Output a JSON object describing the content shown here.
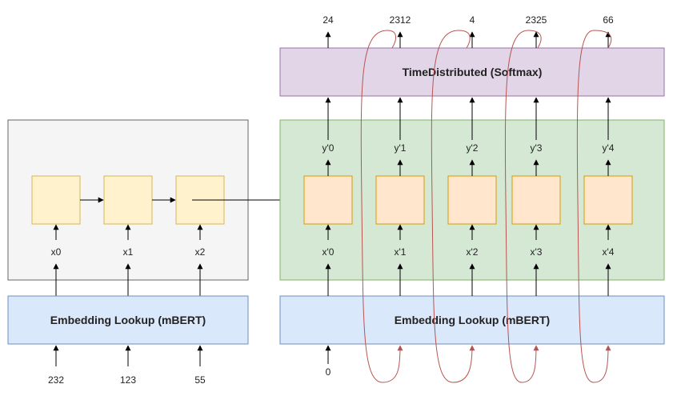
{
  "encoder": {
    "embedding_label": "Embedding Lookup (mBERT)",
    "inputs": [
      "232",
      "123",
      "55"
    ],
    "states": [
      "x0",
      "x1",
      "x2"
    ]
  },
  "decoder": {
    "embedding_label": "Embedding Lookup (mBERT)",
    "start_input": "0",
    "states": [
      "x'0",
      "x'1",
      "x'2",
      "x'3",
      "x'4"
    ],
    "hidden_outputs": [
      "y'0",
      "y'1",
      "y'2",
      "y'3",
      "y'4"
    ],
    "softmax_label": "TimeDistributed (Softmax)",
    "outputs": [
      "24",
      "2312",
      "4",
      "2325",
      "66"
    ]
  },
  "colors": {
    "encoder_panel_fill": "#f5f5f5",
    "encoder_panel_stroke": "#666666",
    "encoder_cell_fill": "#fff2cc",
    "encoder_cell_stroke": "#d6b656",
    "decoder_panel_fill": "#d5e8d4",
    "decoder_panel_stroke": "#82b366",
    "decoder_cell_fill": "#ffe6cc",
    "decoder_cell_stroke": "#d79b00",
    "embedding_fill": "#dae8fc",
    "embedding_stroke": "#6c8ebf",
    "softmax_fill": "#e1d5e7",
    "softmax_stroke": "#9673a6",
    "feedback_loop": "#b85450"
  }
}
